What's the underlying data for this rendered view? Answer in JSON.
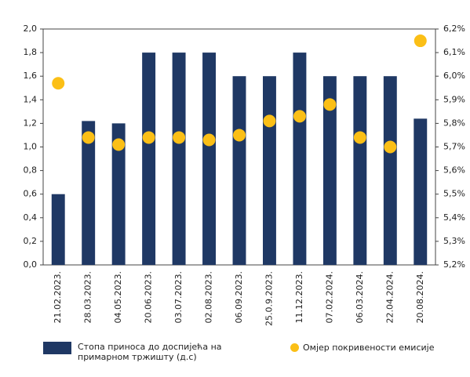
{
  "chart_data": {
    "type": "bar",
    "categories": [
      "21.02.2023.",
      "28.03.2023.",
      "04.05.2023.",
      "20.06.2023.",
      "03.07.2023.",
      "02.08.2023.",
      "06.09.2023.",
      "25.0.9.2023.",
      "11.12.2023.",
      "07.02.2024.",
      "06.03.2024.",
      "22.04.2024.",
      "20.08.2024."
    ],
    "series": [
      {
        "name": "Стопа приноса до доспијећа на примарном тржишту (д.с)",
        "type": "bar",
        "color": "#1f3864",
        "axis": "y",
        "values": [
          0.6,
          1.22,
          1.2,
          1.8,
          1.8,
          1.8,
          1.6,
          1.6,
          1.8,
          1.6,
          1.6,
          1.6,
          1.24
        ]
      },
      {
        "name": "Омјер покривености емисије",
        "type": "scatter",
        "color": "#fbbf16",
        "axis": "y2",
        "values": [
          5.97,
          5.74,
          5.71,
          5.74,
          5.74,
          5.73,
          5.75,
          5.81,
          5.83,
          5.88,
          5.74,
          5.7,
          6.15
        ]
      }
    ],
    "ylim": [
      0,
      2.0
    ],
    "yticks": [
      {
        "value": 0,
        "label": "0,0"
      },
      {
        "value": 0.2,
        "label": "0,2"
      },
      {
        "value": 0.4,
        "label": "0,4"
      },
      {
        "value": 0.6,
        "label": "0,6"
      },
      {
        "value": 0.8,
        "label": "0,8"
      },
      {
        "value": 1.0,
        "label": "1,0"
      },
      {
        "value": 1.2,
        "label": "1,2"
      },
      {
        "value": 1.4,
        "label": "1,4"
      },
      {
        "value": 1.6,
        "label": "1,6"
      },
      {
        "value": 1.8,
        "label": "1,8"
      },
      {
        "value": 2.0,
        "label": "2,0"
      }
    ],
    "y2lim": [
      5.2,
      6.2
    ],
    "y2ticks": [
      {
        "value": 5.2,
        "label": "5,2%"
      },
      {
        "value": 5.3,
        "label": "5,3%"
      },
      {
        "value": 5.4,
        "label": "5,4%"
      },
      {
        "value": 5.5,
        "label": "5,5%"
      },
      {
        "value": 5.6,
        "label": "5,6%"
      },
      {
        "value": 5.7,
        "label": "5,7%"
      },
      {
        "value": 5.8,
        "label": "5,8%"
      },
      {
        "value": 5.9,
        "label": "5,9%"
      },
      {
        "value": 6.0,
        "label": "6,0%"
      },
      {
        "value": 6.1,
        "label": "6,1%"
      },
      {
        "value": 6.2,
        "label": "6,2%"
      }
    ],
    "grid": false
  }
}
